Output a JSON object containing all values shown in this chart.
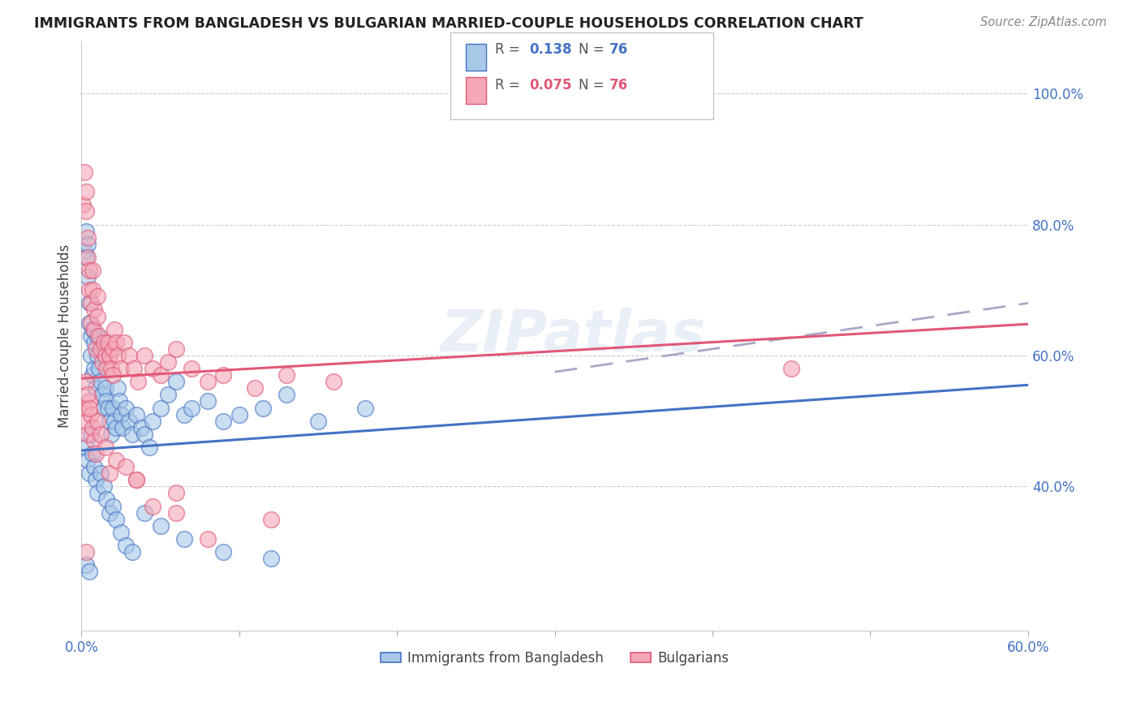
{
  "title": "IMMIGRANTS FROM BANGLADESH VS BULGARIAN MARRIED-COUPLE HOUSEHOLDS CORRELATION CHART",
  "source": "Source: ZipAtlas.com",
  "ylabel": "Married-couple Households",
  "ytick_labels": [
    "40.0%",
    "60.0%",
    "80.0%",
    "100.0%"
  ],
  "ytick_values": [
    0.4,
    0.6,
    0.8,
    1.0
  ],
  "xlim": [
    0.0,
    0.6
  ],
  "ylim": [
    0.18,
    1.08
  ],
  "color_blue": "#a8c8e8",
  "color_pink": "#f4a8b8",
  "color_blue_line": "#4472c4",
  "color_pink_line": "#e05878",
  "color_dashed": "#9999bb",
  "watermark": "ZIPatlas",
  "blue_line_x0": 0.0,
  "blue_line_y0": 0.455,
  "blue_line_x1": 0.6,
  "blue_line_y1": 0.555,
  "pink_line_x0": 0.0,
  "pink_line_y0": 0.565,
  "pink_line_x1": 0.6,
  "pink_line_y1": 0.648,
  "dash_line_x0": 0.3,
  "dash_line_y0": 0.575,
  "dash_line_x1": 0.6,
  "dash_line_y1": 0.68,
  "scatter_blue_x": [
    0.002,
    0.003,
    0.003,
    0.004,
    0.004,
    0.005,
    0.005,
    0.006,
    0.006,
    0.007,
    0.007,
    0.008,
    0.008,
    0.009,
    0.01,
    0.01,
    0.011,
    0.012,
    0.013,
    0.014,
    0.015,
    0.016,
    0.017,
    0.018,
    0.019,
    0.02,
    0.021,
    0.022,
    0.023,
    0.024,
    0.025,
    0.026,
    0.028,
    0.03,
    0.032,
    0.035,
    0.038,
    0.04,
    0.043,
    0.045,
    0.05,
    0.055,
    0.06,
    0.065,
    0.07,
    0.08,
    0.09,
    0.1,
    0.115,
    0.13,
    0.15,
    0.18,
    0.003,
    0.004,
    0.005,
    0.006,
    0.007,
    0.008,
    0.009,
    0.01,
    0.012,
    0.014,
    0.016,
    0.018,
    0.02,
    0.022,
    0.025,
    0.028,
    0.032,
    0.04,
    0.05,
    0.065,
    0.09,
    0.12,
    0.003,
    0.005
  ],
  "scatter_blue_y": [
    0.76,
    0.79,
    0.75,
    0.77,
    0.72,
    0.68,
    0.65,
    0.63,
    0.6,
    0.57,
    0.64,
    0.62,
    0.58,
    0.55,
    0.63,
    0.6,
    0.58,
    0.56,
    0.54,
    0.52,
    0.55,
    0.53,
    0.52,
    0.5,
    0.48,
    0.52,
    0.5,
    0.49,
    0.55,
    0.53,
    0.51,
    0.49,
    0.52,
    0.5,
    0.48,
    0.51,
    0.49,
    0.48,
    0.46,
    0.5,
    0.52,
    0.54,
    0.56,
    0.51,
    0.52,
    0.53,
    0.5,
    0.51,
    0.52,
    0.54,
    0.5,
    0.52,
    0.46,
    0.44,
    0.42,
    0.48,
    0.45,
    0.43,
    0.41,
    0.39,
    0.42,
    0.4,
    0.38,
    0.36,
    0.37,
    0.35,
    0.33,
    0.31,
    0.3,
    0.36,
    0.34,
    0.32,
    0.3,
    0.29,
    0.28,
    0.27
  ],
  "scatter_pink_x": [
    0.001,
    0.002,
    0.003,
    0.003,
    0.004,
    0.004,
    0.005,
    0.005,
    0.006,
    0.006,
    0.007,
    0.007,
    0.008,
    0.008,
    0.009,
    0.01,
    0.01,
    0.011,
    0.012,
    0.013,
    0.014,
    0.015,
    0.016,
    0.017,
    0.018,
    0.019,
    0.02,
    0.021,
    0.022,
    0.023,
    0.025,
    0.027,
    0.03,
    0.033,
    0.036,
    0.04,
    0.045,
    0.05,
    0.055,
    0.06,
    0.07,
    0.08,
    0.09,
    0.11,
    0.13,
    0.16,
    0.45,
    0.002,
    0.003,
    0.004,
    0.005,
    0.006,
    0.007,
    0.008,
    0.009,
    0.01,
    0.012,
    0.015,
    0.018,
    0.022,
    0.028,
    0.035,
    0.045,
    0.06,
    0.08,
    0.003,
    0.004,
    0.005,
    0.02,
    0.035,
    0.06,
    0.12,
    0.003
  ],
  "scatter_pink_y": [
    0.83,
    0.88,
    0.85,
    0.82,
    0.78,
    0.75,
    0.73,
    0.7,
    0.68,
    0.65,
    0.73,
    0.7,
    0.67,
    0.64,
    0.61,
    0.69,
    0.66,
    0.63,
    0.61,
    0.59,
    0.62,
    0.6,
    0.58,
    0.62,
    0.6,
    0.58,
    0.61,
    0.64,
    0.62,
    0.6,
    0.58,
    0.62,
    0.6,
    0.58,
    0.56,
    0.6,
    0.58,
    0.57,
    0.59,
    0.61,
    0.58,
    0.56,
    0.57,
    0.55,
    0.57,
    0.56,
    0.58,
    0.52,
    0.5,
    0.48,
    0.53,
    0.51,
    0.49,
    0.47,
    0.45,
    0.5,
    0.48,
    0.46,
    0.42,
    0.44,
    0.43,
    0.41,
    0.37,
    0.36,
    0.32,
    0.56,
    0.54,
    0.52,
    0.57,
    0.41,
    0.39,
    0.35,
    0.3
  ]
}
